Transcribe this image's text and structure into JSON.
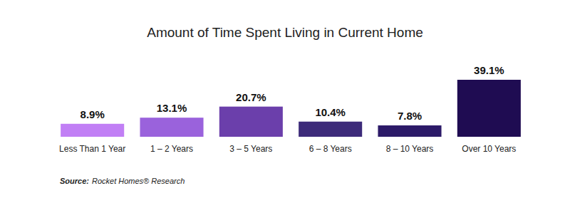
{
  "chart_data": {
    "type": "bar",
    "title": "Amount of Time Spent Living in Current Home",
    "categories": [
      "Less Than 1 Year",
      "1 – 2 Years",
      "3 – 5 Years",
      "6 – 8 Years",
      "8 – 10 Years",
      "Over 10 Years"
    ],
    "values": [
      8.9,
      13.1,
      20.7,
      10.4,
      7.8,
      39.1
    ],
    "value_labels": [
      "8.9%",
      "13.1%",
      "20.7%",
      "10.4%",
      "7.8%",
      "39.1%"
    ],
    "colors": [
      "#c17ff5",
      "#9a62dc",
      "#6b3fab",
      "#3d2b7a",
      "#2c1a68",
      "#1f0c52"
    ],
    "ylim": [
      0,
      39.1
    ],
    "data_labels": true,
    "tick_labels": "x",
    "annotations": [
      "Source:",
      "Rocket Homes® Research"
    ]
  }
}
